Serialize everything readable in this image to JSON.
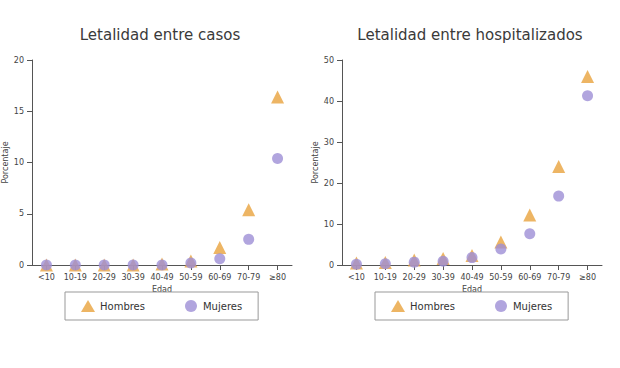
{
  "chart_data": [
    {
      "type": "scatter",
      "title": "Letalidad entre casos",
      "x_label": "Edad",
      "y_label": "Porcentaje",
      "categories": [
        "<10",
        "10-19",
        "20-29",
        "30-39",
        "40-49",
        "50-59",
        "60-69",
        "70-79",
        "≥80"
      ],
      "series": [
        {
          "name": "Hombres",
          "color": "#e8a33d",
          "marker": "triangle",
          "values": [
            0,
            0,
            0,
            0,
            0.1,
            0.4,
            1.7,
            5.4,
            16.4
          ]
        },
        {
          "name": "Mujeres",
          "color": "#9d8fd6",
          "marker": "circle",
          "values": [
            0,
            0,
            0,
            0,
            0,
            0.2,
            0.6,
            2.5,
            10.4
          ]
        }
      ],
      "ylim": [
        0,
        20
      ],
      "yticks": [
        0,
        5,
        10,
        15,
        20
      ],
      "grid": false,
      "legend": "bottom"
    },
    {
      "type": "scatter",
      "title": "Letalidad entre hospitalizados",
      "x_label": "Edad",
      "y_label": "Porcentaje",
      "categories": [
        "<10",
        "10-19",
        "20-29",
        "30-39",
        "40-49",
        "50-59",
        "60-69",
        "70-79",
        "≥80"
      ],
      "series": [
        {
          "name": "Hombres",
          "color": "#e8a33d",
          "marker": "triangle",
          "values": [
            0.5,
            0.6,
            1.2,
            1.6,
            2.3,
            5.6,
            12.2,
            24.0,
            46.0
          ]
        },
        {
          "name": "Mujeres",
          "color": "#9d8fd6",
          "marker": "circle",
          "values": [
            0.2,
            0.3,
            0.7,
            0.9,
            1.8,
            3.9,
            7.6,
            16.8,
            41.3
          ]
        }
      ],
      "ylim": [
        0,
        50
      ],
      "yticks": [
        0,
        10,
        20,
        30,
        40,
        50
      ],
      "grid": false,
      "legend": "bottom"
    }
  ]
}
